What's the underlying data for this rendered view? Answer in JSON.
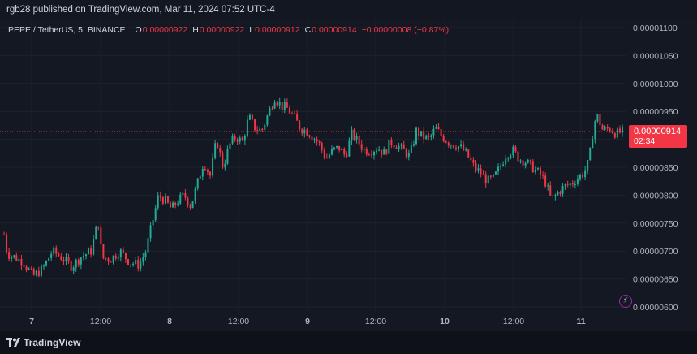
{
  "header": {
    "publisher_line": "rgb28 published on TradingView.com, Mar 11, 2024 07:52 UTC-4"
  },
  "legend": {
    "symbol": "PEPE / TetherUS, 5, BINANCE",
    "open_label": "O",
    "open": "0.00000922",
    "high_label": "H",
    "high": "0.00000922",
    "low_label": "L",
    "low": "0.00000912",
    "close_label": "C",
    "close": "0.00000914",
    "change": "−0.00000008 (−0.87%)"
  },
  "price_tag": {
    "price": "0.00000914",
    "countdown": "02:34"
  },
  "footer": {
    "brand": "TradingView"
  },
  "colors": {
    "up": "#22ab94",
    "down": "#f23645",
    "background": "#131722",
    "grid": "#1e222d",
    "axis_text": "#b2b5be"
  },
  "icons": {
    "event_badge": "lightning-icon",
    "logo": "tradingview-logo-icon"
  },
  "chart_data": {
    "type": "candlestick",
    "symbol": "PEPE / TetherUS",
    "interval": "5",
    "exchange": "BINANCE",
    "ylim": [
      6e-06,
      1.1e-05
    ],
    "y_ticks": [
      "0.00001100",
      "0.00001050",
      "0.00001000",
      "0.00000950",
      "0.00000900",
      "0.00000850",
      "0.00000800",
      "0.00000750",
      "0.00000700",
      "0.00000650",
      "0.00000600"
    ],
    "x_tick_labels": [
      "7",
      "12:00",
      "8",
      "12:00",
      "9",
      "12:00",
      "10",
      "12:00",
      "11"
    ],
    "last_price": 9.14e-06,
    "grid": true,
    "approx_price_path": [
      [
        0.0,
        7.3e-06
      ],
      [
        0.5,
        6.95e-06
      ],
      [
        1.5,
        6.9e-06
      ],
      [
        3.0,
        6.8e-06
      ],
      [
        4.5,
        6.55e-06
      ],
      [
        6.0,
        6.68e-06
      ],
      [
        7.5,
        7e-06
      ],
      [
        9.0,
        6.88e-06
      ],
      [
        10.5,
        6.72e-06
      ],
      [
        12.0,
        6.9e-06
      ],
      [
        13.5,
        7e-06
      ],
      [
        14.6,
        7.55e-06
      ],
      [
        15.2,
        6.88e-06
      ],
      [
        16.5,
        6.85e-06
      ],
      [
        18.0,
        7e-06
      ],
      [
        19.5,
        6.8e-06
      ],
      [
        21.0,
        6.75e-06
      ],
      [
        22.0,
        7e-06
      ],
      [
        23.0,
        7.5e-06
      ],
      [
        24.0,
        8e-06
      ],
      [
        25.0,
        7.9e-06
      ],
      [
        26.0,
        7.75e-06
      ],
      [
        27.0,
        7.9e-06
      ],
      [
        28.0,
        8e-06
      ],
      [
        29.0,
        7.8e-06
      ],
      [
        30.0,
        8.2e-06
      ],
      [
        31.0,
        8.6e-06
      ],
      [
        32.0,
        8.35e-06
      ],
      [
        33.0,
        9e-06
      ],
      [
        34.0,
        8.5e-06
      ],
      [
        35.0,
        8.9e-06
      ],
      [
        36.0,
        9.05e-06
      ],
      [
        37.0,
        8.95e-06
      ],
      [
        38.0,
        9.4e-06
      ],
      [
        39.0,
        9.2e-06
      ],
      [
        40.0,
        9.15e-06
      ],
      [
        41.0,
        9.45e-06
      ],
      [
        42.0,
        9.75e-06
      ],
      [
        43.0,
        9.6e-06
      ],
      [
        44.0,
        9.55e-06
      ],
      [
        45.0,
        9.4e-06
      ],
      [
        46.0,
        9.2e-06
      ],
      [
        47.0,
        9.15e-06
      ],
      [
        48.0,
        9.05e-06
      ],
      [
        49.0,
        8.9e-06
      ],
      [
        50.0,
        8.65e-06
      ],
      [
        51.0,
        8.8e-06
      ],
      [
        52.0,
        8.85e-06
      ],
      [
        53.0,
        8.7e-06
      ],
      [
        54.0,
        9.1e-06
      ],
      [
        55.0,
        8.95e-06
      ],
      [
        56.0,
        8.8e-06
      ],
      [
        57.0,
        8.8e-06
      ],
      [
        58.0,
        8.85e-06
      ],
      [
        59.0,
        8.75e-06
      ],
      [
        60.0,
        8.95e-06
      ],
      [
        61.0,
        8.9e-06
      ],
      [
        62.0,
        8.8e-06
      ],
      [
        63.0,
        8.7e-06
      ],
      [
        64.0,
        9.15e-06
      ],
      [
        65.0,
        9.05e-06
      ],
      [
        66.0,
        9e-06
      ],
      [
        67.0,
        9.2e-06
      ],
      [
        68.0,
        9.05e-06
      ],
      [
        69.0,
        8.95e-06
      ],
      [
        70.0,
        8.9e-06
      ],
      [
        71.0,
        8.85e-06
      ],
      [
        72.0,
        8.7e-06
      ],
      [
        73.0,
        8.5e-06
      ],
      [
        74.0,
        8.4e-06
      ],
      [
        75.0,
        8.25e-06
      ],
      [
        76.0,
        8.3e-06
      ],
      [
        77.0,
        8.5e-06
      ],
      [
        78.0,
        8.75e-06
      ],
      [
        79.0,
        8.8e-06
      ],
      [
        80.0,
        8.65e-06
      ],
      [
        81.0,
        8.6e-06
      ],
      [
        82.0,
        8.5e-06
      ],
      [
        83.0,
        8.4e-06
      ],
      [
        84.0,
        8.25e-06
      ],
      [
        85.0,
        7.9e-06
      ],
      [
        86.0,
        8.05e-06
      ],
      [
        87.0,
        8.15e-06
      ],
      [
        88.0,
        8.2e-06
      ],
      [
        89.0,
        8.3e-06
      ],
      [
        90.0,
        8.4e-06
      ],
      [
        90.8,
        8.6e-06
      ],
      [
        91.5,
        9.2e-06
      ],
      [
        92.0,
        9.45e-06
      ],
      [
        93.0,
        9.15e-06
      ],
      [
        94.0,
        9.2e-06
      ],
      [
        95.0,
        9.1e-06
      ],
      [
        96.0,
        9.14e-06
      ]
    ]
  }
}
